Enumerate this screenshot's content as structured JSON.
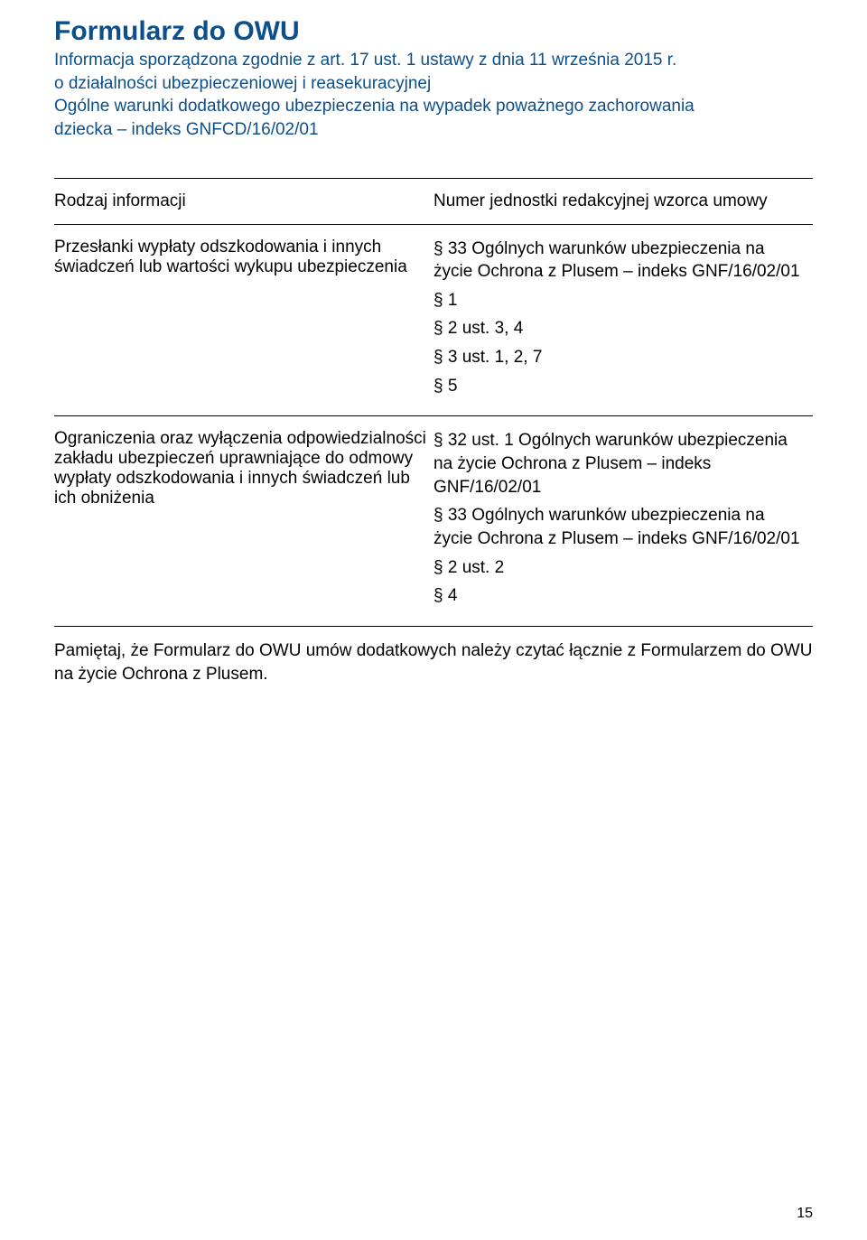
{
  "title": "Formularz do OWU",
  "subtitle": {
    "line1": "Informacja sporządzona zgodnie z art. 17 ust. 1 ustawy z dnia 11 września 2015 r.",
    "line2": "o działalności ubezpieczeniowej i reasekuracyjnej",
    "line3": "Ogólne warunki dodatkowego ubezpieczenia na wypadek poważnego zachorowania",
    "line4": "dziecka – indeks GNFCD/16/02/01"
  },
  "table": {
    "header": {
      "left": "Rodzaj informacji",
      "right": "Numer jednostki redakcyjnej wzorca umowy"
    },
    "row1": {
      "left": "Przesłanki wypłaty odszkodowania i innych świadczeń lub wartości wykupu ubezpieczenia",
      "right_items": [
        "§ 33 Ogólnych warunków ubezpieczenia na życie Ochrona z Plusem – indeks GNF/16/02/01",
        "§ 1",
        "§ 2 ust. 3, 4",
        "§ 3 ust. 1, 2, 7",
        "§ 5"
      ]
    },
    "row2": {
      "left": "Ograniczenia oraz wyłączenia odpowiedzialności zakładu ubezpieczeń uprawniające do odmowy wypłaty odszkodowania i innych świadczeń lub ich obniżenia",
      "right_items": [
        "§ 32 ust. 1 Ogólnych warunków ubezpieczenia na życie Ochrona z Plusem – indeks GNF/16/02/01",
        "§ 33 Ogólnych warunków ubezpieczenia na życie Ochrona z Plusem – indeks GNF/16/02/01",
        "§ 2 ust. 2",
        "§ 4"
      ]
    }
  },
  "footer_note": "Pamiętaj, że Formularz do OWU umów dodatkowych należy czytać łącznie z Formularzem do OWU na życie Ochrona z Plusem.",
  "page_number": "15",
  "colors": {
    "heading": "#0d4f8b",
    "text": "#000000",
    "background": "#ffffff",
    "border": "#000000"
  }
}
